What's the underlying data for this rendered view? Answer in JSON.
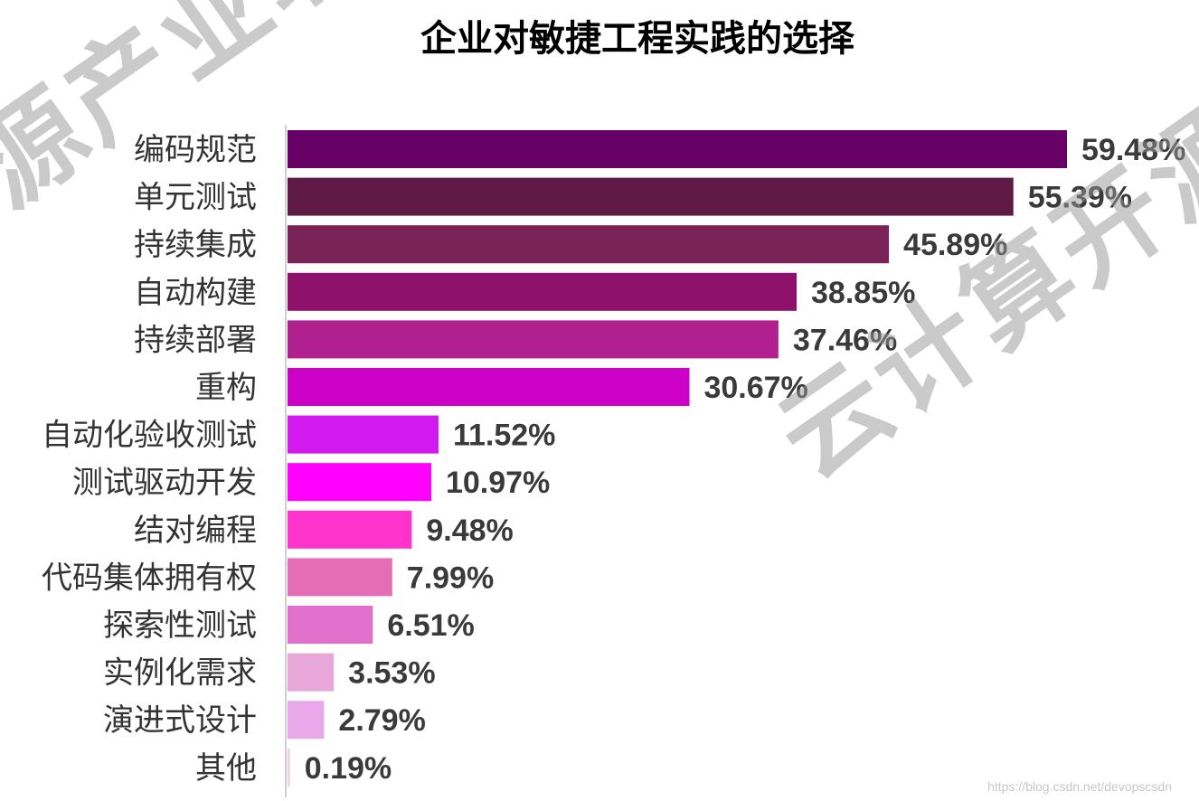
{
  "chart_data": {
    "type": "bar",
    "orientation": "horizontal",
    "title": "企业对敏捷工程实践的选择",
    "categories": [
      "编码规范",
      "单元测试",
      "持续集成",
      "自动构建",
      "持续部署",
      "重构",
      "自动化验收测试",
      "测试驱动开发",
      "结对编程",
      "代码集体拥有权",
      "探索性测试",
      "实例化需求",
      "演进式设计",
      "其他"
    ],
    "values": [
      59.48,
      55.39,
      45.89,
      38.85,
      37.46,
      30.67,
      11.52,
      10.97,
      9.48,
      7.99,
      6.51,
      3.53,
      2.79,
      0.19
    ],
    "value_labels": [
      "59.48%",
      "55.39%",
      "45.89%",
      "38.85%",
      "37.46%",
      "30.67%",
      "11.52%",
      "10.97%",
      "9.48%",
      "7.99%",
      "6.51%",
      "3.53%",
      "2.79%",
      "0.19%"
    ],
    "colors": [
      "#660066",
      "#5e1a45",
      "#7a2358",
      "#8e116c",
      "#b0208f",
      "#cc00c6",
      "#d219f0",
      "#ff00ff",
      "#ff33cc",
      "#e56db5",
      "#e070cc",
      "#e8a6d9",
      "#e9a8ea",
      "#f0d0e8"
    ],
    "xlim": [
      0,
      64
    ],
    "grid": false,
    "legend": "none"
  },
  "watermark": {
    "left": "源产业联盟",
    "right": "云计算开源产"
  },
  "footer": {
    "url": "https://blog.csdn.net/devopscsdn"
  }
}
